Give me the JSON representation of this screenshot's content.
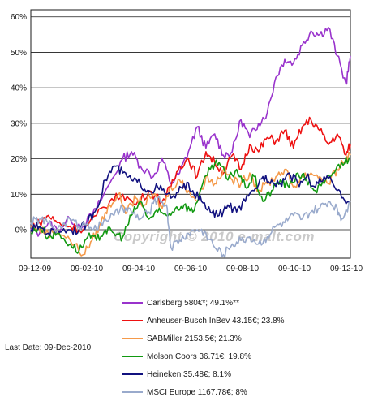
{
  "chart_data": {
    "type": "line",
    "x_ticks": [
      "09-12-09",
      "09-02-10",
      "09-04-10",
      "09-06-10",
      "09-08-10",
      "09-10-10",
      "09-12-10"
    ],
    "y_ticks": [
      "0%",
      "10%",
      "20%",
      "30%",
      "40%",
      "50%",
      "60%"
    ],
    "ylim": [
      -8,
      62
    ],
    "xlim": [
      0,
      365
    ],
    "grid": "horizontal",
    "watermark": "Copyright © 2010 e-malt.com",
    "series": [
      {
        "name": "Carlsberg  580€*; 49.1%**",
        "color": "#9933cc",
        "points": [
          [
            0,
            0
          ],
          [
            10,
            -1
          ],
          [
            20,
            2
          ],
          [
            30,
            0
          ],
          [
            45,
            3
          ],
          [
            60,
            1
          ],
          [
            75,
            6
          ],
          [
            90,
            13
          ],
          [
            105,
            20
          ],
          [
            115,
            22
          ],
          [
            125,
            18
          ],
          [
            140,
            15
          ],
          [
            150,
            20
          ],
          [
            160,
            13
          ],
          [
            170,
            16
          ],
          [
            180,
            22
          ],
          [
            190,
            29
          ],
          [
            200,
            23
          ],
          [
            210,
            27
          ],
          [
            220,
            21
          ],
          [
            230,
            22
          ],
          [
            240,
            31
          ],
          [
            250,
            26
          ],
          [
            260,
            30
          ],
          [
            270,
            33
          ],
          [
            280,
            43
          ],
          [
            290,
            48
          ],
          [
            300,
            47
          ],
          [
            310,
            52
          ],
          [
            320,
            56
          ],
          [
            330,
            55
          ],
          [
            340,
            57
          ],
          [
            350,
            49
          ],
          [
            360,
            41
          ],
          [
            365,
            49
          ]
        ]
      },
      {
        "name": "Anheuser-Busch InBev  43.15€; 23.8%",
        "color": "#ee1111",
        "points": [
          [
            0,
            1
          ],
          [
            10,
            2
          ],
          [
            20,
            4
          ],
          [
            30,
            2
          ],
          [
            45,
            1
          ],
          [
            60,
            0
          ],
          [
            75,
            4
          ],
          [
            90,
            8
          ],
          [
            105,
            10
          ],
          [
            120,
            7
          ],
          [
            135,
            11
          ],
          [
            150,
            8
          ],
          [
            160,
            12
          ],
          [
            170,
            18
          ],
          [
            180,
            20
          ],
          [
            190,
            15
          ],
          [
            200,
            22
          ],
          [
            210,
            19
          ],
          [
            220,
            16
          ],
          [
            230,
            21
          ],
          [
            240,
            17
          ],
          [
            250,
            24
          ],
          [
            260,
            22
          ],
          [
            270,
            26
          ],
          [
            280,
            25
          ],
          [
            290,
            28
          ],
          [
            300,
            23
          ],
          [
            310,
            29
          ],
          [
            320,
            31
          ],
          [
            330,
            28
          ],
          [
            340,
            24
          ],
          [
            350,
            27
          ],
          [
            360,
            21
          ],
          [
            365,
            24
          ]
        ]
      },
      {
        "name": "SABMiller  2153.5€; 21.3%",
        "color": "#f59a4a",
        "points": [
          [
            0,
            1
          ],
          [
            10,
            0
          ],
          [
            20,
            -1
          ],
          [
            30,
            0
          ],
          [
            45,
            -3
          ],
          [
            60,
            -7
          ],
          [
            70,
            -3
          ],
          [
            80,
            2
          ],
          [
            90,
            7
          ],
          [
            100,
            10
          ],
          [
            110,
            5
          ],
          [
            120,
            9
          ],
          [
            130,
            7
          ],
          [
            140,
            10
          ],
          [
            150,
            6
          ],
          [
            160,
            12
          ],
          [
            170,
            14
          ],
          [
            180,
            11
          ],
          [
            190,
            8
          ],
          [
            200,
            15
          ],
          [
            210,
            13
          ],
          [
            220,
            17
          ],
          [
            230,
            14
          ],
          [
            240,
            13
          ],
          [
            250,
            16
          ],
          [
            260,
            11
          ],
          [
            270,
            13
          ],
          [
            280,
            15
          ],
          [
            290,
            17
          ],
          [
            300,
            12
          ],
          [
            310,
            15
          ],
          [
            320,
            16
          ],
          [
            330,
            15
          ],
          [
            340,
            13
          ],
          [
            350,
            17
          ],
          [
            360,
            20
          ],
          [
            365,
            21
          ]
        ]
      },
      {
        "name": "Molson Coors  36.71€; 19.8%",
        "color": "#119911",
        "points": [
          [
            0,
            -1
          ],
          [
            10,
            1
          ],
          [
            20,
            -2
          ],
          [
            30,
            -1
          ],
          [
            45,
            -4
          ],
          [
            55,
            -6
          ],
          [
            65,
            -2
          ],
          [
            75,
            -3
          ],
          [
            85,
            0
          ],
          [
            95,
            -1
          ],
          [
            105,
            -2
          ],
          [
            115,
            4
          ],
          [
            125,
            8
          ],
          [
            135,
            3
          ],
          [
            145,
            5
          ],
          [
            155,
            4
          ],
          [
            165,
            6
          ],
          [
            175,
            7
          ],
          [
            185,
            5
          ],
          [
            195,
            12
          ],
          [
            205,
            17
          ],
          [
            215,
            19
          ],
          [
            225,
            14
          ],
          [
            235,
            17
          ],
          [
            245,
            12
          ],
          [
            255,
            15
          ],
          [
            265,
            8
          ],
          [
            275,
            11
          ],
          [
            285,
            14
          ],
          [
            295,
            12
          ],
          [
            305,
            16
          ],
          [
            315,
            14
          ],
          [
            325,
            11
          ],
          [
            335,
            13
          ],
          [
            345,
            16
          ],
          [
            355,
            19
          ],
          [
            365,
            20
          ]
        ]
      },
      {
        "name": "Heineken  35.48€; 8.1%",
        "color": "#11117f",
        "points": [
          [
            0,
            0
          ],
          [
            10,
            1
          ],
          [
            20,
            -1
          ],
          [
            30,
            0
          ],
          [
            45,
            0
          ],
          [
            55,
            0
          ],
          [
            65,
            2
          ],
          [
            75,
            6
          ],
          [
            85,
            14
          ],
          [
            95,
            18
          ],
          [
            105,
            16
          ],
          [
            115,
            14
          ],
          [
            125,
            13
          ],
          [
            135,
            11
          ],
          [
            145,
            12
          ],
          [
            155,
            10
          ],
          [
            165,
            9
          ],
          [
            175,
            13
          ],
          [
            185,
            11
          ],
          [
            195,
            8
          ],
          [
            205,
            5
          ],
          [
            215,
            4
          ],
          [
            225,
            7
          ],
          [
            235,
            5
          ],
          [
            245,
            8
          ],
          [
            255,
            11
          ],
          [
            265,
            15
          ],
          [
            275,
            14
          ],
          [
            285,
            13
          ],
          [
            295,
            16
          ],
          [
            305,
            13
          ],
          [
            315,
            15
          ],
          [
            325,
            12
          ],
          [
            335,
            15
          ],
          [
            345,
            13
          ],
          [
            355,
            9
          ],
          [
            365,
            8
          ]
        ]
      },
      {
        "name": "MSCI Europe  1167.78€; 8%",
        "color": "#99aacc",
        "points": [
          [
            0,
            2
          ],
          [
            10,
            3
          ],
          [
            20,
            2
          ],
          [
            30,
            0
          ],
          [
            45,
            3
          ],
          [
            55,
            1
          ],
          [
            65,
            2
          ],
          [
            75,
            0
          ],
          [
            85,
            3
          ],
          [
            95,
            4
          ],
          [
            105,
            6
          ],
          [
            115,
            5
          ],
          [
            125,
            3
          ],
          [
            135,
            5
          ],
          [
            145,
            9
          ],
          [
            155,
            7
          ],
          [
            160,
            -5
          ],
          [
            170,
            -3
          ],
          [
            180,
            -1
          ],
          [
            190,
            0
          ],
          [
            200,
            -1
          ],
          [
            210,
            -5
          ],
          [
            220,
            -7
          ],
          [
            230,
            -4
          ],
          [
            240,
            -3
          ],
          [
            250,
            -2
          ],
          [
            260,
            -4
          ],
          [
            270,
            -2
          ],
          [
            280,
            1
          ],
          [
            290,
            2
          ],
          [
            300,
            4
          ],
          [
            310,
            3
          ],
          [
            320,
            5
          ],
          [
            330,
            6
          ],
          [
            340,
            8
          ],
          [
            350,
            6
          ],
          [
            355,
            3
          ],
          [
            365,
            8
          ]
        ]
      }
    ]
  },
  "last_date": "Last Date: 09-Dec-2010"
}
